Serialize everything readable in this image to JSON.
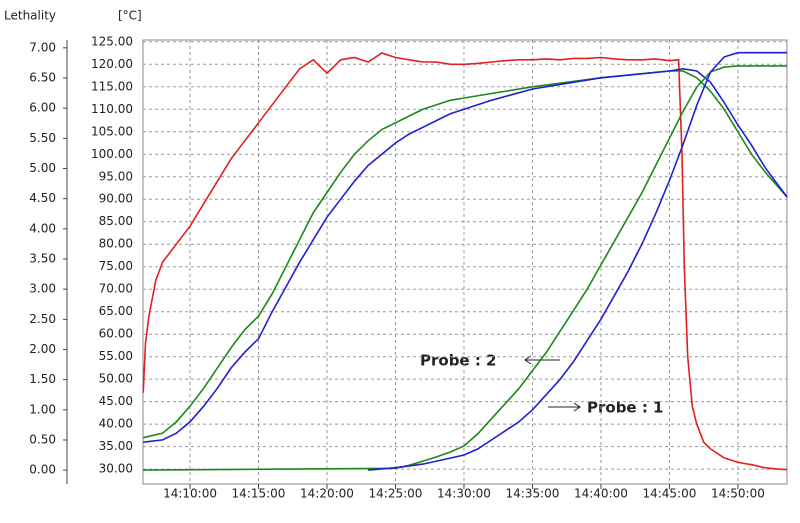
{
  "chart_data": {
    "type": "line",
    "y_label": "Lethality",
    "y2_label": "[°C]",
    "xlim": [
      "14:06:34",
      "14:53:35"
    ],
    "xticks": [
      "14:10:00",
      "14:15:00",
      "14:20:00",
      "14:25:00",
      "14:30:00",
      "14:35:00",
      "14:40:00",
      "14:45:00",
      "14:50:00"
    ],
    "ylim": [
      -0.23,
      7.13
    ],
    "yticks": [
      {
        "value": 0,
        "label": "0.00"
      },
      {
        "value": 0.5,
        "label": "0.50"
      },
      {
        "value": 1,
        "label": "1.00"
      },
      {
        "value": 1.5,
        "label": "1.50"
      },
      {
        "value": 2,
        "label": "2.00"
      },
      {
        "value": 2.5,
        "label": "2.50"
      },
      {
        "value": 3,
        "label": "3.00"
      },
      {
        "value": 3.5,
        "label": "3.50"
      },
      {
        "value": 4,
        "label": "4.00"
      },
      {
        "value": 4.5,
        "label": "4.50"
      },
      {
        "value": 5,
        "label": "5.00"
      },
      {
        "value": 5.5,
        "label": "5.50"
      },
      {
        "value": 6,
        "label": "6.00"
      },
      {
        "value": 6.5,
        "label": "6.50"
      },
      {
        "value": 7,
        "label": "7.00"
      }
    ],
    "y2lim": [
      26.7,
      125.4
    ],
    "y2ticks": [
      {
        "value": 30,
        "label": "30.00"
      },
      {
        "value": 35,
        "label": "35.00"
      },
      {
        "value": 40,
        "label": "40.00"
      },
      {
        "value": 45,
        "label": "45.00"
      },
      {
        "value": 50,
        "label": "50.00"
      },
      {
        "value": 55,
        "label": "55.00"
      },
      {
        "value": 60,
        "label": "60.00"
      },
      {
        "value": 65,
        "label": "65.00"
      },
      {
        "value": 70,
        "label": "70.00"
      },
      {
        "value": 75,
        "label": "75.00"
      },
      {
        "value": 80,
        "label": "80.00"
      },
      {
        "value": 85,
        "label": "85.00"
      },
      {
        "value": 90,
        "label": "90.00"
      },
      {
        "value": 95,
        "label": "95.00"
      },
      {
        "value": 100,
        "label": "100.00"
      },
      {
        "value": 105,
        "label": "105.00"
      },
      {
        "value": 110,
        "label": "110.00"
      },
      {
        "value": 115,
        "label": "115.00"
      },
      {
        "value": 120,
        "label": "120.00"
      },
      {
        "value": 125,
        "label": "125.00"
      }
    ],
    "grid": true,
    "annotations": [
      "Probe : 2",
      "Probe : 1"
    ],
    "series": [
      {
        "color": "#e02020",
        "axis": "y2",
        "x": [
          "14:06:35",
          "14:06:45",
          "14:07:00",
          "14:07:30",
          "14:08:00",
          "14:09:00",
          "14:10:00",
          "14:11:00",
          "14:12:00",
          "14:13:00",
          "14:14:00",
          "14:15:00",
          "14:16:00",
          "14:17:00",
          "14:18:00",
          "14:19:00",
          "14:20:00",
          "14:21:00",
          "14:22:00",
          "14:23:00",
          "14:24:00",
          "14:25:00",
          "14:26:00",
          "14:27:00",
          "14:28:00",
          "14:29:00",
          "14:30:00",
          "14:31:00",
          "14:32:00",
          "14:33:00",
          "14:34:00",
          "14:35:00",
          "14:36:00",
          "14:37:00",
          "14:38:00",
          "14:39:00",
          "14:40:00",
          "14:41:00",
          "14:42:00",
          "14:43:00",
          "14:44:00",
          "14:45:00",
          "14:45:40",
          "14:45:55",
          "14:46:05",
          "14:46:20",
          "14:46:40",
          "14:47:00",
          "14:47:30",
          "14:48:00",
          "14:49:00",
          "14:50:00",
          "14:51:00",
          "14:52:00",
          "14:53:00",
          "14:53:35"
        ],
        "values": [
          47,
          58,
          64,
          72,
          76,
          80,
          84,
          89,
          94,
          99,
          103,
          107,
          111,
          115,
          119,
          121,
          118,
          121,
          121.5,
          120.5,
          122.5,
          121.5,
          121,
          120.5,
          120.5,
          120,
          120,
          120.2,
          120.5,
          120.8,
          121,
          121,
          121.2,
          121,
          121.3,
          121.3,
          121.5,
          121.2,
          121,
          121,
          121.2,
          120.8,
          121,
          100,
          75,
          55,
          44,
          40,
          36,
          34.5,
          32.5,
          31.5,
          31,
          30.3,
          30,
          29.9
        ]
      },
      {
        "color": "#1a8a1a",
        "axis": "y2",
        "x": [
          "14:06:35",
          "14:08:00",
          "14:09:00",
          "14:10:00",
          "14:11:00",
          "14:12:00",
          "14:13:00",
          "14:14:00",
          "14:15:00",
          "14:16:00",
          "14:17:00",
          "14:18:00",
          "14:19:00",
          "14:20:00",
          "14:21:00",
          "14:22:00",
          "14:23:00",
          "14:24:00",
          "14:25:00",
          "14:26:00",
          "14:27:00",
          "14:28:00",
          "14:29:00",
          "14:30:00",
          "14:32:00",
          "14:35:00",
          "14:40:00",
          "14:45:00",
          "14:46:00",
          "14:47:00",
          "14:48:00",
          "14:49:00",
          "14:50:00",
          "14:51:00",
          "14:52:00",
          "14:53:35"
        ],
        "values": [
          37,
          38,
          40.5,
          44,
          48,
          52.5,
          57,
          61,
          64,
          69,
          75,
          81,
          87,
          91.5,
          96,
          100,
          103,
          105.5,
          107,
          108.5,
          110,
          111,
          112,
          112.5,
          113.5,
          115,
          117,
          118.5,
          118.5,
          117,
          114,
          110,
          105,
          100,
          96,
          90.5
        ]
      },
      {
        "color": "#2020d0",
        "axis": "y2",
        "x": [
          "14:06:35",
          "14:08:00",
          "14:09:00",
          "14:10:00",
          "14:11:00",
          "14:12:00",
          "14:13:00",
          "14:14:00",
          "14:15:00",
          "14:16:00",
          "14:17:00",
          "14:18:00",
          "14:19:00",
          "14:20:00",
          "14:21:00",
          "14:22:00",
          "14:23:00",
          "14:24:00",
          "14:25:00",
          "14:26:00",
          "14:27:00",
          "14:28:00",
          "14:29:00",
          "14:30:00",
          "14:32:00",
          "14:35:00",
          "14:40:00",
          "14:45:00",
          "14:46:00",
          "14:47:00",
          "14:48:00",
          "14:49:00",
          "14:50:00",
          "14:51:00",
          "14:52:00",
          "14:53:35"
        ],
        "values": [
          36,
          36.5,
          38,
          40.5,
          44,
          48,
          52.5,
          56,
          59,
          65,
          70.5,
          76,
          81,
          86,
          90,
          94,
          97.5,
          100,
          102.5,
          104.5,
          106,
          107.5,
          109,
          110,
          112,
          114.5,
          117,
          118.5,
          119,
          118.5,
          116,
          111.5,
          106.5,
          102,
          97,
          90.5
        ]
      },
      {
        "color": "#1a8a1a",
        "x": [
          "14:06:35",
          "14:25:00",
          "14:26:00",
          "14:27:00",
          "14:28:00",
          "14:29:00",
          "14:30:00",
          "14:31:00",
          "14:32:00",
          "14:33:00",
          "14:34:00",
          "14:35:00",
          "14:36:00",
          "14:37:00",
          "14:38:00",
          "14:39:00",
          "14:40:00",
          "14:41:00",
          "14:42:00",
          "14:43:00",
          "14:44:00",
          "14:45:00",
          "14:46:00",
          "14:47:00",
          "14:48:00",
          "14:49:00",
          "14:50:00",
          "14:53:35"
        ],
        "values": [
          0,
          0.03,
          0.08,
          0.15,
          0.22,
          0.3,
          0.4,
          0.6,
          0.85,
          1.1,
          1.35,
          1.65,
          1.95,
          2.3,
          2.65,
          3,
          3.4,
          3.8,
          4.2,
          4.6,
          5.05,
          5.5,
          5.95,
          6.35,
          6.6,
          6.68,
          6.7,
          6.7
        ]
      },
      {
        "color": "#2020d0",
        "x": [
          "14:23:00",
          "14:24:00",
          "14:25:00",
          "14:26:00",
          "14:27:00",
          "14:28:00",
          "14:29:00",
          "14:30:00",
          "14:31:00",
          "14:32:00",
          "14:33:00",
          "14:34:00",
          "14:35:00",
          "14:36:00",
          "14:37:00",
          "14:38:00",
          "14:39:00",
          "14:40:00",
          "14:41:00",
          "14:42:00",
          "14:43:00",
          "14:44:00",
          "14:45:00",
          "14:46:00",
          "14:47:00",
          "14:48:00",
          "14:49:00",
          "14:50:00",
          "14:53:35"
        ],
        "values": [
          0,
          0.02,
          0.04,
          0.07,
          0.1,
          0.15,
          0.2,
          0.25,
          0.35,
          0.5,
          0.65,
          0.8,
          1,
          1.25,
          1.5,
          1.8,
          2.15,
          2.5,
          2.9,
          3.3,
          3.75,
          4.25,
          4.8,
          5.4,
          6.05,
          6.6,
          6.85,
          6.92,
          6.92
        ]
      }
    ]
  }
}
